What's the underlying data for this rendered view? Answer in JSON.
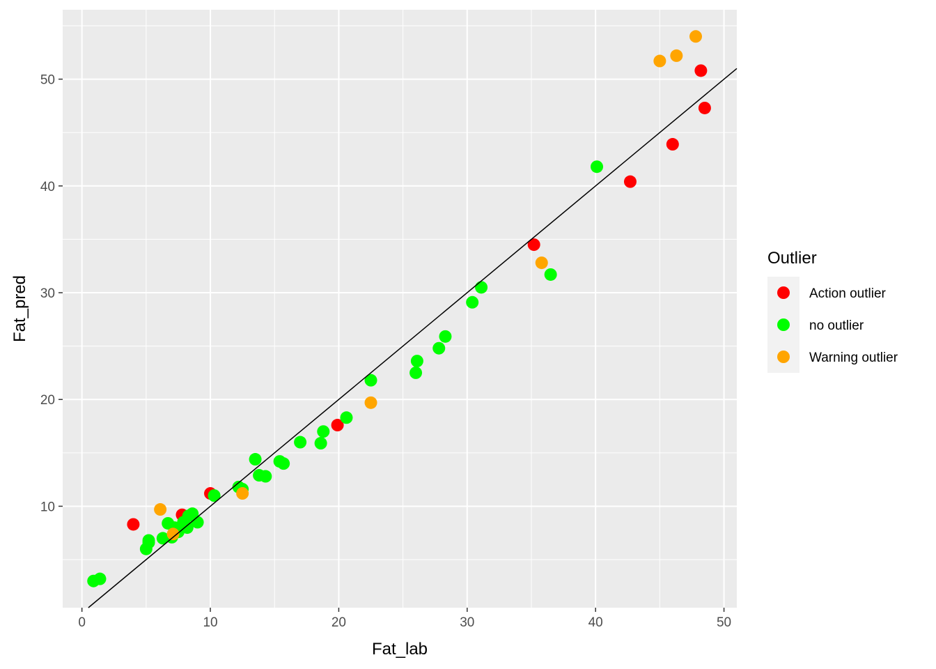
{
  "chart_data": {
    "type": "scatter",
    "xlabel": "Fat_lab",
    "ylabel": "Fat_pred",
    "xlim": [
      -1.5,
      51
    ],
    "ylim": [
      0.5,
      56.5
    ],
    "x_ticks": [
      0,
      10,
      20,
      30,
      40,
      50
    ],
    "y_ticks": [
      10,
      20,
      30,
      40,
      50
    ],
    "grid": true,
    "background": "#EBEBEB",
    "reference_line": {
      "x1": 0.5,
      "y1": 0.5,
      "x2": 51,
      "y2": 51,
      "color": "#000000"
    },
    "legend": {
      "title": "Outlier",
      "placement": "right",
      "entries": [
        {
          "label": "Action outlier",
          "color": "#FF0000"
        },
        {
          "label": "no outlier",
          "color": "#00FF00"
        },
        {
          "label": "Warning outlier",
          "color": "#FFA500"
        }
      ]
    },
    "series": [
      {
        "name": "Action outlier",
        "color": "#FF0000",
        "points": [
          [
            4.0,
            8.3
          ],
          [
            7.8,
            9.2
          ],
          [
            10.0,
            11.2
          ],
          [
            19.9,
            17.6
          ],
          [
            35.2,
            34.5
          ],
          [
            42.7,
            40.4
          ],
          [
            46.0,
            43.9
          ],
          [
            48.2,
            50.8
          ],
          [
            48.5,
            47.3
          ]
        ]
      },
      {
        "name": "no outlier",
        "color": "#00FF00",
        "points": [
          [
            0.9,
            3.0
          ],
          [
            1.4,
            3.2
          ],
          [
            5.0,
            6.0
          ],
          [
            5.2,
            6.6
          ],
          [
            5.2,
            6.8
          ],
          [
            6.3,
            7.0
          ],
          [
            6.7,
            8.4
          ],
          [
            7.0,
            7.1
          ],
          [
            7.2,
            8.0
          ],
          [
            7.5,
            7.6
          ],
          [
            7.9,
            8.5
          ],
          [
            8.2,
            8.0
          ],
          [
            8.3,
            9.1
          ],
          [
            8.6,
            9.3
          ],
          [
            9.0,
            8.5
          ],
          [
            10.3,
            11.0
          ],
          [
            12.2,
            11.8
          ],
          [
            12.5,
            11.6
          ],
          [
            13.5,
            14.4
          ],
          [
            13.8,
            12.9
          ],
          [
            14.3,
            12.8
          ],
          [
            15.4,
            14.2
          ],
          [
            15.7,
            14.0
          ],
          [
            17.0,
            16.0
          ],
          [
            18.6,
            15.9
          ],
          [
            18.8,
            17.0
          ],
          [
            20.6,
            18.3
          ],
          [
            22.5,
            21.8
          ],
          [
            26.0,
            22.5
          ],
          [
            26.1,
            23.6
          ],
          [
            27.8,
            24.8
          ],
          [
            28.3,
            25.9
          ],
          [
            30.4,
            29.1
          ],
          [
            31.1,
            30.5
          ],
          [
            36.5,
            31.7
          ],
          [
            40.1,
            41.8
          ]
        ]
      },
      {
        "name": "Warning outlier",
        "color": "#FFA500",
        "points": [
          [
            6.1,
            9.7
          ],
          [
            7.1,
            7.4
          ],
          [
            12.5,
            11.2
          ],
          [
            22.5,
            19.7
          ],
          [
            35.8,
            32.8
          ],
          [
            45.0,
            51.7
          ],
          [
            46.3,
            52.2
          ],
          [
            47.8,
            54.0
          ]
        ]
      }
    ]
  }
}
